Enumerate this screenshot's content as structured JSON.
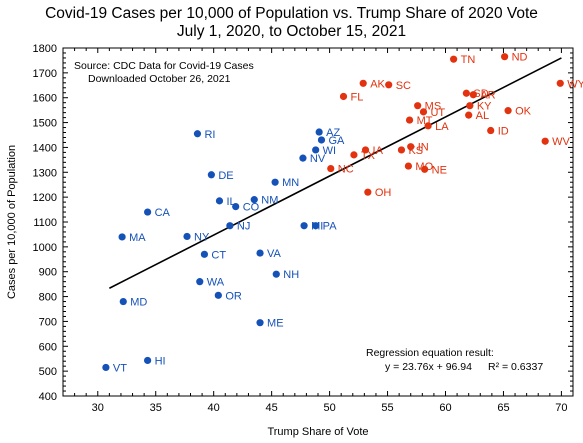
{
  "chart_data": {
    "type": "scatter",
    "title": "Covid-19 Cases per 10,000 of Population vs. Trump Share of 2020 Vote",
    "subtitle": "July 1, 2020, to October 15, 2021",
    "xlabel": "Trump Share of Vote",
    "ylabel": "Cases per 10,000 of Population",
    "xlim": [
      27,
      71
    ],
    "ylim": [
      400,
      1800
    ],
    "xticks": [
      30,
      35,
      40,
      45,
      50,
      55,
      60,
      65,
      70
    ],
    "yticks": [
      400,
      500,
      600,
      700,
      800,
      900,
      1000,
      1100,
      1200,
      1300,
      1400,
      1500,
      1600,
      1700,
      1800
    ],
    "grid": false,
    "source_note": [
      "Source:  CDC Data for Covid-19 Cases",
      "Downloaded October 26, 2021"
    ],
    "regression": {
      "caption": "Regression equation result:",
      "equation": "y = 23.76x + 96.94",
      "r2": "R² = 0.6337",
      "slope": 23.76,
      "intercept": 96.94,
      "x_range": [
        31,
        70
      ]
    },
    "colors": {
      "blue": "#1552b8",
      "red": "#e2320f",
      "line": "#000000"
    },
    "points": [
      {
        "state": "VT",
        "x": 30.7,
        "y": 515,
        "color": "blue"
      },
      {
        "state": "HI",
        "x": 34.3,
        "y": 543,
        "color": "blue"
      },
      {
        "state": "MD",
        "x": 32.2,
        "y": 780,
        "color": "blue"
      },
      {
        "state": "MA",
        "x": 32.1,
        "y": 1040,
        "color": "blue"
      },
      {
        "state": "CA",
        "x": 34.3,
        "y": 1140,
        "color": "blue"
      },
      {
        "state": "NY",
        "x": 37.7,
        "y": 1042,
        "color": "blue"
      },
      {
        "state": "WA",
        "x": 38.8,
        "y": 860,
        "color": "blue"
      },
      {
        "state": "OR",
        "x": 40.4,
        "y": 805,
        "color": "blue"
      },
      {
        "state": "CT",
        "x": 39.2,
        "y": 970,
        "color": "blue"
      },
      {
        "state": "NJ",
        "x": 41.4,
        "y": 1085,
        "color": "blue"
      },
      {
        "state": "DE",
        "x": 39.8,
        "y": 1290,
        "color": "blue"
      },
      {
        "state": "IL",
        "x": 40.5,
        "y": 1185,
        "color": "blue"
      },
      {
        "state": "CO",
        "x": 41.9,
        "y": 1162,
        "color": "blue"
      },
      {
        "state": "NM",
        "x": 43.5,
        "y": 1190,
        "color": "blue"
      },
      {
        "state": "RI",
        "x": 38.6,
        "y": 1455,
        "color": "blue"
      },
      {
        "state": "VA",
        "x": 44.0,
        "y": 975,
        "color": "blue"
      },
      {
        "state": "NH",
        "x": 45.4,
        "y": 890,
        "color": "blue"
      },
      {
        "state": "ME",
        "x": 44.0,
        "y": 695,
        "color": "blue"
      },
      {
        "state": "MN",
        "x": 45.3,
        "y": 1260,
        "color": "blue"
      },
      {
        "state": "MI",
        "x": 47.8,
        "y": 1085,
        "color": "blue"
      },
      {
        "state": "PA",
        "x": 48.8,
        "y": 1085,
        "color": "blue"
      },
      {
        "state": "NV",
        "x": 47.7,
        "y": 1357,
        "color": "blue"
      },
      {
        "state": "WI",
        "x": 48.8,
        "y": 1390,
        "color": "blue"
      },
      {
        "state": "AZ",
        "x": 49.1,
        "y": 1462,
        "color": "blue"
      },
      {
        "state": "GA",
        "x": 49.3,
        "y": 1430,
        "color": "blue"
      },
      {
        "state": "NC",
        "x": 50.1,
        "y": 1315,
        "color": "red"
      },
      {
        "state": "TX",
        "x": 52.1,
        "y": 1370,
        "color": "red"
      },
      {
        "state": "IA",
        "x": 53.1,
        "y": 1390,
        "color": "red"
      },
      {
        "state": "OH",
        "x": 53.3,
        "y": 1220,
        "color": "red"
      },
      {
        "state": "FL",
        "x": 51.2,
        "y": 1605,
        "color": "red"
      },
      {
        "state": "AK",
        "x": 52.9,
        "y": 1658,
        "color": "red"
      },
      {
        "state": "SC",
        "x": 55.1,
        "y": 1652,
        "color": "red"
      },
      {
        "state": "MS",
        "x": 57.6,
        "y": 1568,
        "color": "red"
      },
      {
        "state": "UT",
        "x": 58.1,
        "y": 1543,
        "color": "red"
      },
      {
        "state": "MT",
        "x": 56.9,
        "y": 1510,
        "color": "red"
      },
      {
        "state": "LA",
        "x": 58.5,
        "y": 1487,
        "color": "red"
      },
      {
        "state": "IN",
        "x": 57.0,
        "y": 1403,
        "color": "red"
      },
      {
        "state": "KS",
        "x": 56.2,
        "y": 1390,
        "color": "red"
      },
      {
        "state": "MO",
        "x": 56.8,
        "y": 1325,
        "color": "red"
      },
      {
        "state": "NE",
        "x": 58.2,
        "y": 1312,
        "color": "red"
      },
      {
        "state": "TN",
        "x": 60.7,
        "y": 1755,
        "color": "red"
      },
      {
        "state": "ND",
        "x": 65.1,
        "y": 1765,
        "color": "red"
      },
      {
        "state": "SD",
        "x": 61.8,
        "y": 1618,
        "color": "red"
      },
      {
        "state": "AR",
        "x": 62.4,
        "y": 1612,
        "color": "red"
      },
      {
        "state": "KY",
        "x": 62.1,
        "y": 1568,
        "color": "red"
      },
      {
        "state": "AL",
        "x": 62.0,
        "y": 1530,
        "color": "red"
      },
      {
        "state": "OK",
        "x": 65.4,
        "y": 1548,
        "color": "red"
      },
      {
        "state": "ID",
        "x": 63.9,
        "y": 1468,
        "color": "red"
      },
      {
        "state": "WV",
        "x": 68.6,
        "y": 1425,
        "color": "red"
      },
      {
        "state": "WY",
        "x": 69.9,
        "y": 1658,
        "color": "red"
      }
    ]
  }
}
